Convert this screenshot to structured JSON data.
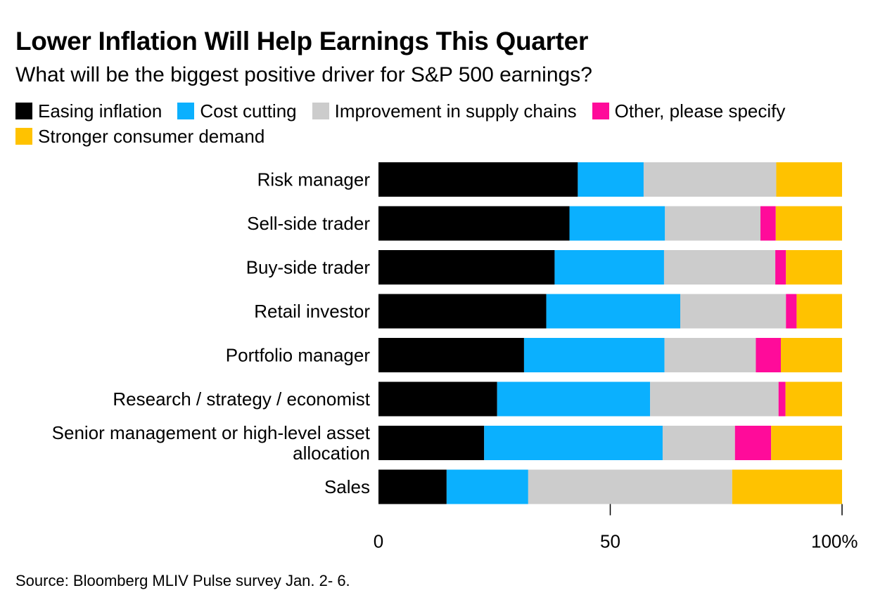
{
  "chart_data": {
    "type": "bar",
    "orientation": "horizontal",
    "stacked": true,
    "title": "Lower Inflation Will Help Earnings This Quarter",
    "subtitle": "What will be the biggest positive driver for S&P 500 earnings?",
    "categories": [
      "Risk manager",
      "Sell-side trader",
      "Buy-side trader",
      "Retail investor",
      "Portfolio manager",
      "Research / strategy / economist",
      "Senior management or high-level asset allocation",
      "Sales"
    ],
    "category_lines": [
      [
        "Risk manager"
      ],
      [
        "Sell-side trader"
      ],
      [
        "Buy-side trader"
      ],
      [
        "Retail investor"
      ],
      [
        "Portfolio manager"
      ],
      [
        "Research / strategy / economist"
      ],
      [
        "Senior management or high-level asset",
        "allocation"
      ],
      [
        "Sales"
      ]
    ],
    "series": [
      {
        "name": "Easing inflation",
        "color": "#000000",
        "values": [
          43,
          41.2,
          38,
          36.2,
          31.4,
          25.6,
          22.8,
          14.7
        ]
      },
      {
        "name": "Cost cutting",
        "color": "#0bb0fe",
        "values": [
          14.2,
          20.6,
          23.6,
          28.9,
          30.3,
          33,
          38.5,
          17.6
        ]
      },
      {
        "name": "Improvement in supply chains",
        "color": "#cccccc",
        "values": [
          28.6,
          20.6,
          24,
          22.8,
          19.7,
          27.7,
          15.6,
          44
        ]
      },
      {
        "name": "Other, please specify",
        "color": "#ff0b9a",
        "values": [
          0,
          3.3,
          2.3,
          2.3,
          5.4,
          1.5,
          7.8,
          0
        ]
      },
      {
        "name": "Stronger consumer demand",
        "color": "#ffc200",
        "values": [
          14.2,
          14.3,
          12.1,
          9.8,
          13.2,
          12.2,
          15.3,
          23.7
        ]
      }
    ],
    "xlim": [
      0,
      100
    ],
    "xticks": [
      0,
      50,
      100
    ],
    "xtick_labels": [
      "0",
      "50",
      "100%"
    ],
    "xlabel": "",
    "ylabel": "",
    "grid": false,
    "legend_position": "top"
  },
  "source": "Source: Bloomberg MLIV Pulse survey Jan. 2- 6."
}
